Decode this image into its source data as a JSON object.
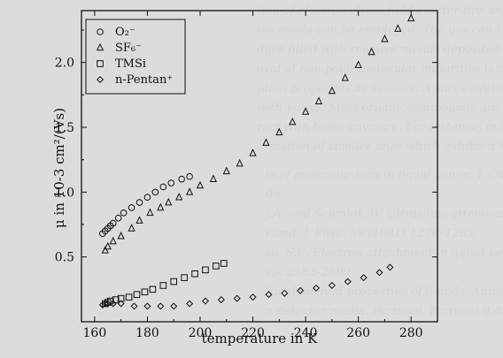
{
  "chart_data": {
    "type": "scatter",
    "xlabel": "temperature in K",
    "ylabel": "μ in 10-3 cm²/(Vs)",
    "xlim": [
      155,
      290
    ],
    "ylim": [
      0.0,
      2.4
    ],
    "x_ticks": [
      "160",
      "180",
      "200",
      "220",
      "240",
      "260",
      "280"
    ],
    "y_ticks": [
      "0.5",
      "1.0",
      "1.5",
      "2.0"
    ],
    "legend": {
      "position": "top-left"
    },
    "series": [
      {
        "name": "O₂⁻",
        "marker": "circle",
        "points": [
          [
            163,
            0.68
          ],
          [
            164,
            0.7
          ],
          [
            165,
            0.72
          ],
          [
            166,
            0.74
          ],
          [
            167,
            0.76
          ],
          [
            169,
            0.8
          ],
          [
            171,
            0.84
          ],
          [
            174,
            0.88
          ],
          [
            177,
            0.92
          ],
          [
            180,
            0.96
          ],
          [
            183,
            1.0
          ],
          [
            186,
            1.04
          ],
          [
            189,
            1.07
          ],
          [
            193,
            1.1
          ],
          [
            196,
            1.12
          ]
        ]
      },
      {
        "name": "SF₆⁻",
        "marker": "triangle",
        "points": [
          [
            164,
            0.55
          ],
          [
            165,
            0.58
          ],
          [
            167,
            0.62
          ],
          [
            170,
            0.66
          ],
          [
            174,
            0.72
          ],
          [
            177,
            0.78
          ],
          [
            181,
            0.84
          ],
          [
            185,
            0.88
          ],
          [
            188,
            0.92
          ],
          [
            192,
            0.96
          ],
          [
            196,
            1.0
          ],
          [
            200,
            1.05
          ],
          [
            205,
            1.1
          ],
          [
            210,
            1.16
          ],
          [
            215,
            1.22
          ],
          [
            220,
            1.3
          ],
          [
            225,
            1.38
          ],
          [
            230,
            1.46
          ],
          [
            235,
            1.54
          ],
          [
            240,
            1.62
          ],
          [
            245,
            1.7
          ],
          [
            250,
            1.78
          ],
          [
            255,
            1.88
          ],
          [
            260,
            1.98
          ],
          [
            265,
            2.08
          ],
          [
            270,
            2.18
          ],
          [
            275,
            2.26
          ],
          [
            280,
            2.34
          ]
        ]
      },
      {
        "name": "TMSi",
        "marker": "square",
        "points": [
          [
            164,
            0.14
          ],
          [
            165,
            0.15
          ],
          [
            166,
            0.16
          ],
          [
            168,
            0.17
          ],
          [
            170,
            0.18
          ],
          [
            173,
            0.19
          ],
          [
            176,
            0.21
          ],
          [
            179,
            0.23
          ],
          [
            182,
            0.25
          ],
          [
            186,
            0.28
          ],
          [
            190,
            0.31
          ],
          [
            194,
            0.34
          ],
          [
            198,
            0.37
          ],
          [
            202,
            0.4
          ],
          [
            206,
            0.43
          ],
          [
            209,
            0.45
          ]
        ]
      },
      {
        "name": "n-Pentan⁺",
        "marker": "diamond",
        "points": [
          [
            163,
            0.13
          ],
          [
            164,
            0.14
          ],
          [
            165,
            0.14
          ],
          [
            167,
            0.14
          ],
          [
            170,
            0.14
          ],
          [
            175,
            0.12
          ],
          [
            180,
            0.12
          ],
          [
            185,
            0.12
          ],
          [
            190,
            0.12
          ],
          [
            196,
            0.14
          ],
          [
            202,
            0.16
          ],
          [
            208,
            0.17
          ],
          [
            214,
            0.18
          ],
          [
            220,
            0.19
          ],
          [
            226,
            0.21
          ],
          [
            232,
            0.22
          ],
          [
            238,
            0.24
          ],
          [
            244,
            0.26
          ],
          [
            250,
            0.28
          ],
          [
            256,
            0.31
          ],
          [
            262,
            0.34
          ],
          [
            268,
            0.38
          ],
          [
            272,
            0.42
          ]
        ]
      }
    ]
  },
  "background_text": [
    "tion of electrons from field emitter tips and other of the impu",
    "ive anode can be employed. The gas can be passed through",
    "dges filled with reactive metals deposited on silica, or molecular",
    "oval of non-polar molecular impurities is more critical since they h",
    "ption properties as sensors. A successful method consists in expos",
    "with γ-rays. Most organic compounds are reduced in their mo",
    "ract with holes anymore. For instance, in the case of alkanes hol",
    "ormation of smaller ones which exhibit a higher ionization energ",
    "is of molecular ions in liquid xenon, J. Chem. Phys. 88 (1988)",
    "09.",
    "J.A. and Schmidt, W. Ultrasonic attenuation and bulk viscosity of li",
    "Cond. J. Phys. 59 (1981) 1276–1285.",
    "so, S.R. Electron attachment in liquid xenon, Phys. Rev",
    "sp. 2582–2590",
    "Fundamental properties of liquids. Applications to",
    "n detector media. Portugal, Portugal 9:45–"
  ],
  "colors": {
    "marker": "#111111",
    "background": "#dcdcdc"
  }
}
